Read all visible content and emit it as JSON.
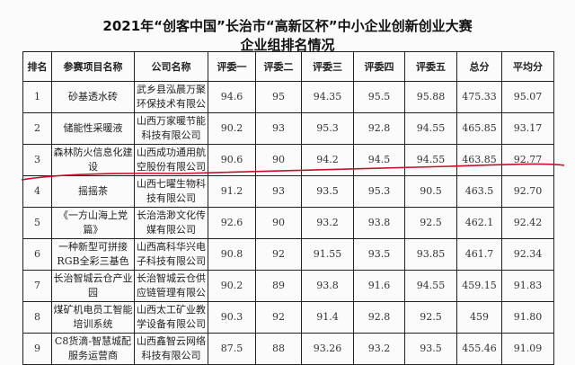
{
  "title": "2021年“创客中国”长治市“高新区杯”中小企业创新创业大赛",
  "subtitle": "企业组排名情况",
  "headers": [
    "排名",
    "参赛项目名称",
    "公司名称",
    "评委一",
    "评委二",
    "评委三",
    "评委四",
    "评委五",
    "总分",
    "平均分"
  ],
  "rows": [
    [
      "1",
      "砂基透水砖",
      "武乡县泓晨万聚环保技术有限公司",
      "94.6",
      "95",
      "94.35",
      "95.5",
      "95.88",
      "475.33",
      "95.07"
    ],
    [
      "2",
      "储能性采暖液",
      "山西万家暖节能科技有限公司",
      "90.2",
      "93",
      "95.3",
      "92.8",
      "94.55",
      "465.85",
      "93.17"
    ],
    [
      "3",
      "森林防火信息化建设",
      "山西成功通用航空股份有限公司",
      "90.6",
      "90",
      "94.2",
      "94.5",
      "94.55",
      "463.85",
      "92.77"
    ],
    [
      "4",
      "摇摇茶",
      "山西七曜生物科技有限公司",
      "91.2",
      "93",
      "93.5",
      "95.3",
      "90.5",
      "463.5",
      "92.70"
    ],
    [
      "5",
      "《一方山海上党篇》",
      "长治浩渺文化传媒有限公司",
      "92.6",
      "90",
      "93.2",
      "93.8",
      "92.5",
      "462.1",
      "92.42"
    ],
    [
      "6",
      "一种新型可拼接RGB全彩三基色Micro LED显示面",
      "山西高科华兴电子科技有限公司",
      "90.8",
      "92",
      "91.55",
      "93.5",
      "93.85",
      "461.7",
      "92.34"
    ],
    [
      "7",
      "长治智城云仓产业园",
      "长治智城云仓供应链管理有限公司",
      "90.2",
      "89",
      "93.8",
      "91.6",
      "94.55",
      "459.15",
      "91.83"
    ],
    [
      "8",
      "煤矿机电员工智能培训系统",
      "山西太工矿业教学设备有限公司",
      "90.3",
      "92",
      "91.4",
      "92.8",
      "92.5",
      "459",
      "91.80"
    ],
    [
      "9",
      "C8货滴-智慧城配服务运营商",
      "山西鑫智云网络科技有限公司",
      "87.5",
      "88",
      "93.26",
      "93.2",
      "93.5",
      "455.46",
      "91.09"
    ]
  ],
  "colors": {
    "annotation_line": "#c8102e"
  }
}
